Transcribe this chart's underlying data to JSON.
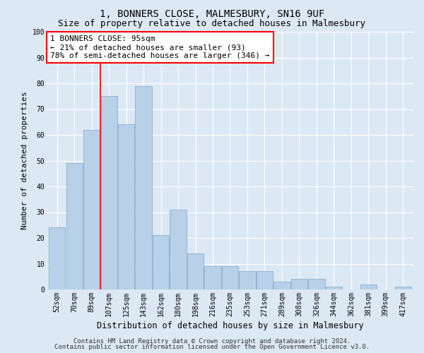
{
  "title": "1, BONNERS CLOSE, MALMESBURY, SN16 9UF",
  "subtitle": "Size of property relative to detached houses in Malmesbury",
  "xlabel": "Distribution of detached houses by size in Malmesbury",
  "ylabel": "Number of detached properties",
  "categories": [
    "52sqm",
    "70sqm",
    "89sqm",
    "107sqm",
    "125sqm",
    "143sqm",
    "162sqm",
    "180sqm",
    "198sqm",
    "216sqm",
    "235sqm",
    "253sqm",
    "271sqm",
    "289sqm",
    "308sqm",
    "326sqm",
    "344sqm",
    "362sqm",
    "381sqm",
    "399sqm",
    "417sqm"
  ],
  "values": [
    24,
    49,
    62,
    75,
    64,
    79,
    21,
    31,
    14,
    9,
    9,
    7,
    7,
    3,
    4,
    4,
    1,
    0,
    2,
    0,
    1
  ],
  "bar_color": "#b8d0e8",
  "bar_edge_color": "#7aaac8",
  "vline_x_index": 2.5,
  "annotation_text": "1 BONNERS CLOSE: 95sqm\n← 21% of detached houses are smaller (93)\n78% of semi-detached houses are larger (346) →",
  "annotation_box_color": "white",
  "annotation_box_edge": "red",
  "ylim": [
    0,
    100
  ],
  "yticks": [
    0,
    10,
    20,
    30,
    40,
    50,
    60,
    70,
    80,
    90,
    100
  ],
  "background_color": "#dde8f5",
  "plot_bg_color": "#dde8f5",
  "grid_color": "white",
  "footer_line1": "Contains HM Land Registry data © Crown copyright and database right 2024.",
  "footer_line2": "Contains public sector information licensed under the Open Government Licence v3.0.",
  "title_fontsize": 10,
  "subtitle_fontsize": 9,
  "xlabel_fontsize": 8.5,
  "ylabel_fontsize": 8,
  "tick_fontsize": 7,
  "annotation_fontsize": 8,
  "footer_fontsize": 6.5
}
